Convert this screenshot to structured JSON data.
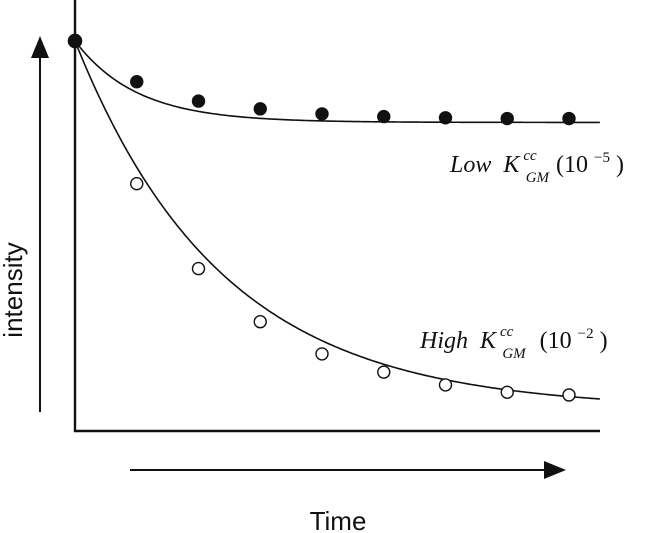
{
  "chart_data": {
    "type": "scatter",
    "title": "",
    "xlabel": "Time",
    "ylabel": "intensity",
    "grid": false,
    "xlim": [
      0,
      9
    ],
    "ylim": [
      0,
      1
    ],
    "series": [
      {
        "label": {
          "prefix": "Low",
          "symbol": "K",
          "superscript": "cc",
          "subscript": "GM",
          "suffix_open": "(10",
          "exponent": "−5",
          "suffix_close": ")"
        },
        "marker": "filled-circle",
        "x": [
          0,
          1,
          2,
          3,
          4,
          5,
          6,
          7,
          8
        ],
        "y": [
          1.0,
          0.895,
          0.845,
          0.825,
          0.812,
          0.805,
          0.802,
          0.8,
          0.8
        ],
        "fit": {
          "a": 0.79,
          "b": 0.21,
          "k": 1.0
        }
      },
      {
        "label": {
          "prefix": "High",
          "symbol": "K",
          "superscript": "cc",
          "subscript": "GM",
          "suffix_open": "(10",
          "exponent": "−2",
          "suffix_close": ")"
        },
        "marker": "open-circle",
        "x": [
          0,
          1,
          2,
          3,
          4,
          5,
          6,
          7,
          8
        ],
        "y": [
          1.0,
          0.632,
          0.413,
          0.276,
          0.193,
          0.146,
          0.113,
          0.094,
          0.087
        ],
        "fit": {
          "a": 0.05,
          "b": 0.95,
          "k": 0.42
        }
      }
    ]
  }
}
